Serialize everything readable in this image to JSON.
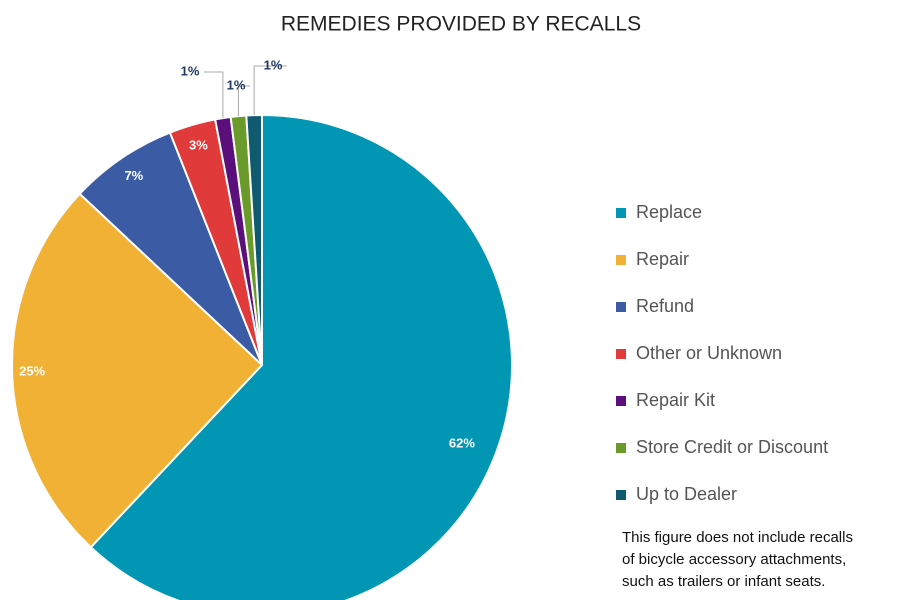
{
  "chart_data": {
    "type": "pie",
    "title": "REMEDIES PROVIDED BY RECALLS",
    "categories": [
      "Replace",
      "Repair",
      "Refund",
      "Other or Unknown",
      "Repair Kit",
      "Store Credit or Discount",
      "Up to Dealer"
    ],
    "values": [
      62,
      25,
      7,
      3,
      1,
      1,
      1
    ],
    "value_labels": [
      "62%",
      "25%",
      "7%",
      "3%",
      "1%",
      "1%",
      "1%"
    ],
    "colors": [
      "#0096b4",
      "#f0b134",
      "#3b5ba5",
      "#e03a3a",
      "#5a0f7a",
      "#6a9a2a",
      "#0f5a6e"
    ],
    "legend": "right",
    "annotation": [
      "This figure does not include recalls",
      "of bicycle accessory attachments,",
      "such as trailers or infant seats."
    ]
  }
}
